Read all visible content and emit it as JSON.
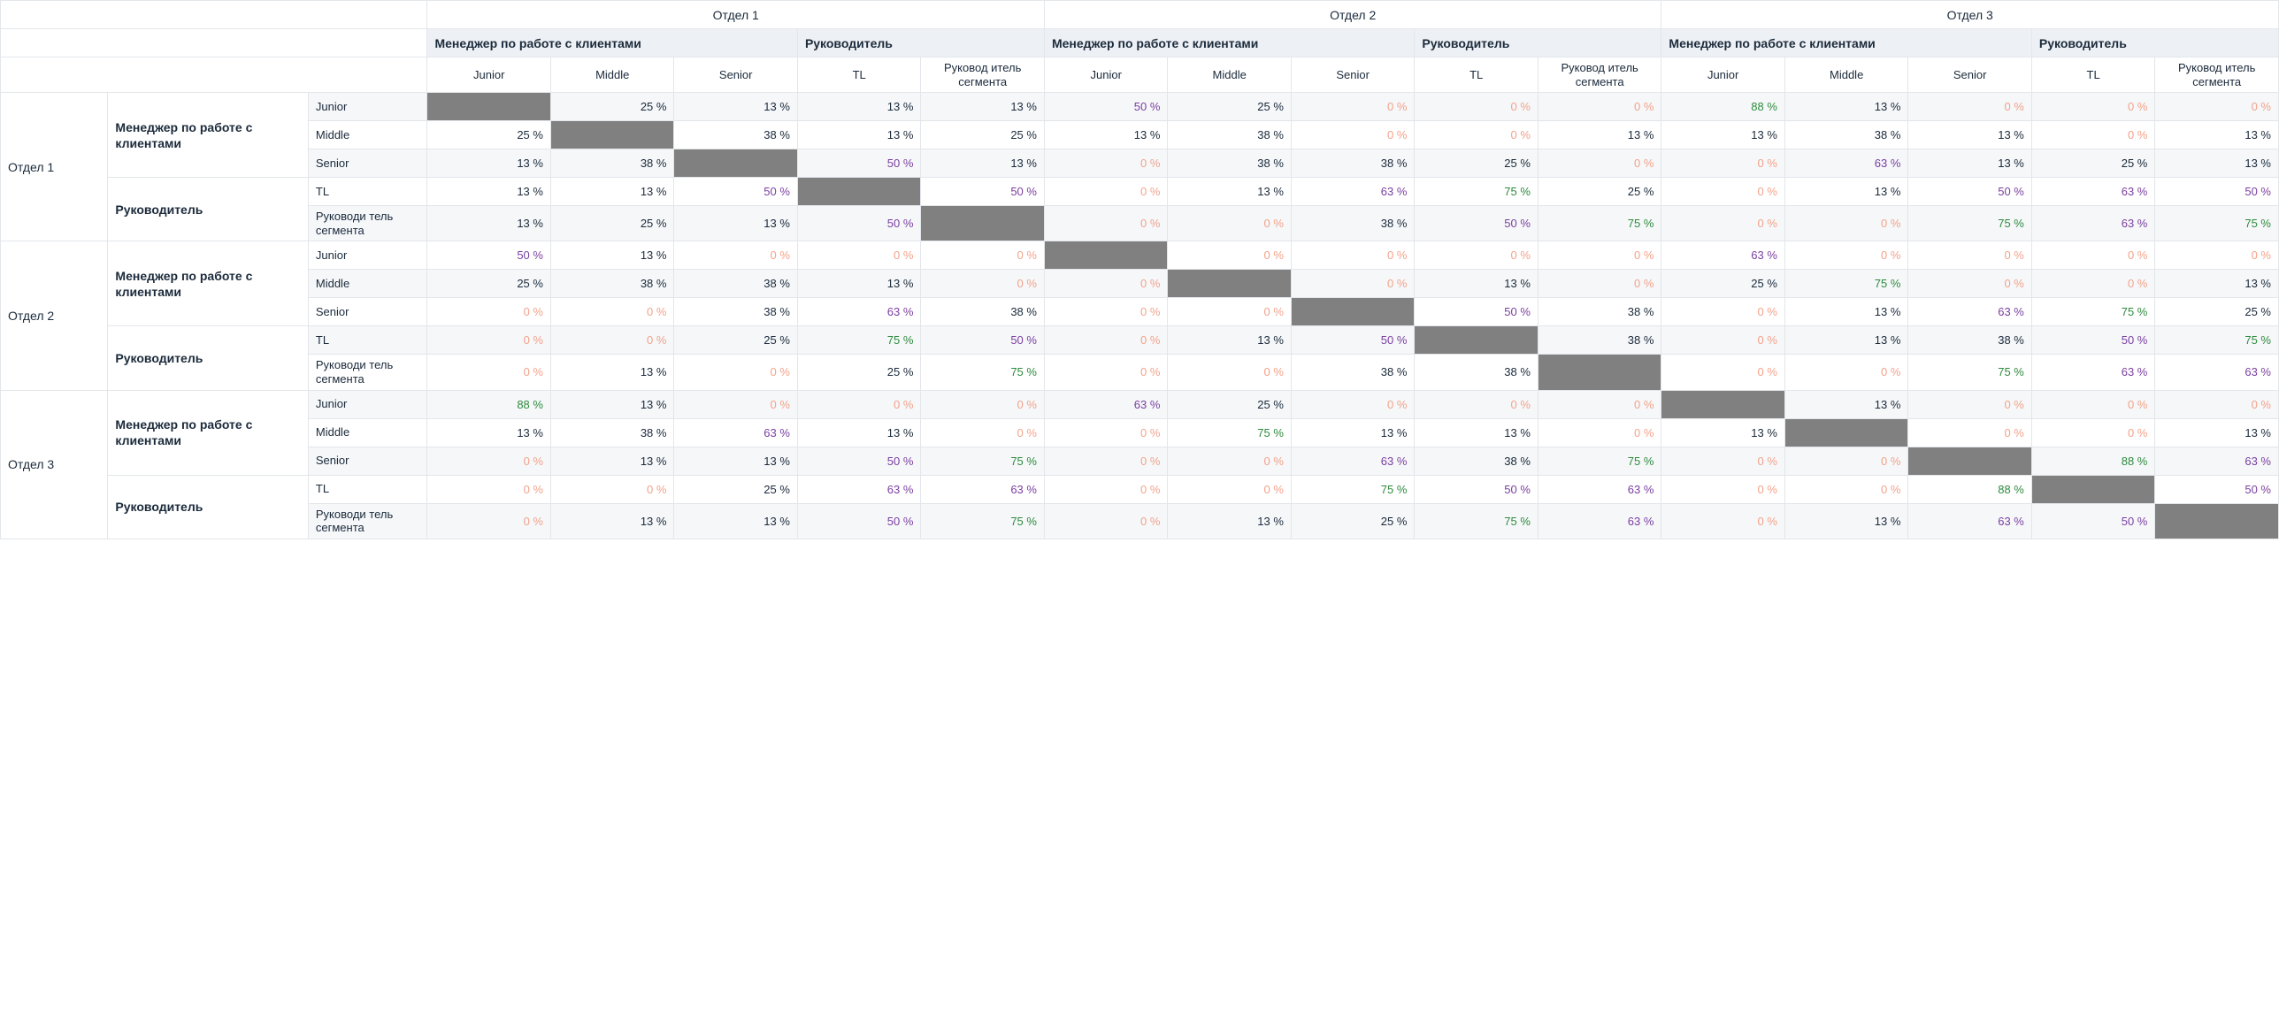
{
  "type": "heatmap-matrix",
  "percent_suffix": " %",
  "colors": {
    "text_default": "#1b2a3b",
    "text_zero": "#f4a28a",
    "text_high_green": "#2e8b3d",
    "text_purple": "#7b3fa0",
    "diagonal_fill": "#808080",
    "header_role_bg": "#edf0f4",
    "stripe_bg": "#f5f7f9",
    "border": "#e3e6ea",
    "background": "#ffffff"
  },
  "thresholds": {
    "zero_exact": 0,
    "green_min": 75,
    "purple_min": 50,
    "purple_max": 74
  },
  "fonts": {
    "family": "-apple-system, Helvetica, Arial, sans-serif",
    "header_dept_size_pt": 11,
    "header_role_size_pt": 11,
    "header_level_size_pt": 10,
    "cell_size_pt": 10,
    "role_weight": 700
  },
  "departments": [
    "Отдел 1",
    "Отдел 2",
    "Отдел 3"
  ],
  "roles": [
    "Менеджер по работе с клиентами",
    "Руководитель"
  ],
  "levels_by_role": {
    "Менеджер по работе с клиентами": [
      "Junior",
      "Middle",
      "Senior"
    ],
    "Руководитель": [
      "TL",
      "Руководитель сегмента"
    ]
  },
  "column_level_label_wrapped": {
    "Руководитель сегмента": "Руковод итель сегмента"
  },
  "row_level_label_wrapped": {
    "Руководитель сегмента": "Руководи тель сегмента"
  },
  "values": [
    [
      null,
      25,
      13,
      13,
      13,
      50,
      25,
      0,
      0,
      0,
      88,
      13,
      0,
      0,
      0
    ],
    [
      25,
      null,
      38,
      13,
      25,
      13,
      38,
      0,
      0,
      13,
      13,
      38,
      13,
      0,
      13
    ],
    [
      13,
      38,
      null,
      50,
      13,
      0,
      38,
      38,
      25,
      0,
      0,
      63,
      13,
      25,
      13
    ],
    [
      13,
      13,
      50,
      null,
      50,
      0,
      13,
      63,
      75,
      25,
      0,
      13,
      50,
      63,
      50
    ],
    [
      13,
      25,
      13,
      50,
      null,
      0,
      0,
      38,
      50,
      75,
      0,
      0,
      75,
      63,
      75
    ],
    [
      50,
      13,
      0,
      0,
      0,
      null,
      0,
      0,
      0,
      0,
      63,
      0,
      0,
      0,
      0
    ],
    [
      25,
      38,
      38,
      13,
      0,
      0,
      null,
      0,
      13,
      0,
      25,
      75,
      0,
      0,
      13
    ],
    [
      0,
      0,
      38,
      63,
      38,
      0,
      0,
      null,
      50,
      38,
      0,
      13,
      63,
      75,
      25
    ],
    [
      0,
      0,
      25,
      75,
      50,
      0,
      13,
      50,
      null,
      38,
      0,
      13,
      38,
      50,
      75
    ],
    [
      0,
      13,
      0,
      25,
      75,
      0,
      0,
      38,
      38,
      null,
      0,
      0,
      75,
      63,
      63
    ],
    [
      88,
      13,
      0,
      0,
      0,
      63,
      25,
      0,
      0,
      0,
      null,
      13,
      0,
      0,
      0
    ],
    [
      13,
      38,
      63,
      13,
      0,
      0,
      75,
      13,
      13,
      0,
      13,
      null,
      0,
      0,
      13
    ],
    [
      0,
      13,
      13,
      50,
      75,
      0,
      0,
      63,
      38,
      75,
      0,
      0,
      null,
      88,
      63
    ],
    [
      0,
      0,
      25,
      63,
      63,
      0,
      0,
      75,
      50,
      63,
      0,
      0,
      88,
      null,
      50
    ],
    [
      0,
      13,
      13,
      50,
      75,
      0,
      13,
      25,
      75,
      63,
      0,
      13,
      63,
      50,
      null
    ]
  ]
}
